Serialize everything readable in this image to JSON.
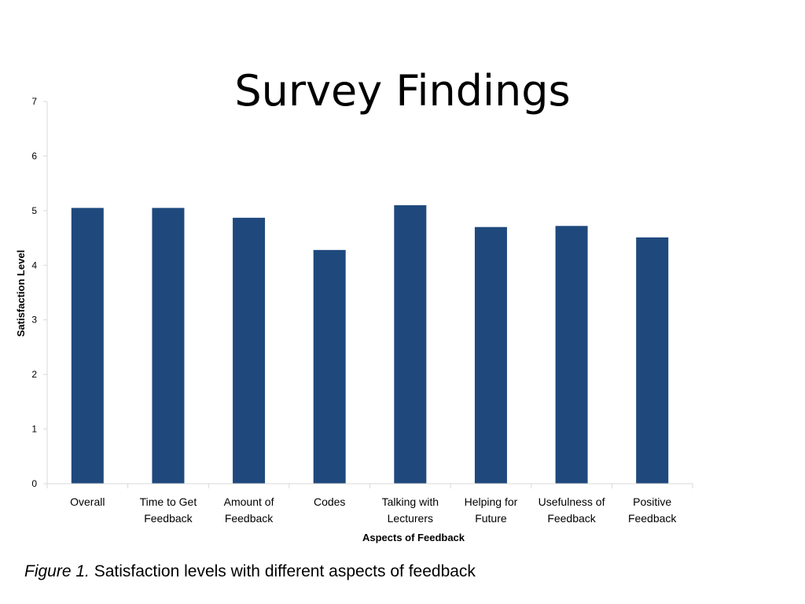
{
  "slide": {
    "title": "Survey Findings"
  },
  "caption": {
    "label": "Figure 1.",
    "text": "Satisfaction levels with different aspects of feedback"
  },
  "chart_data": {
    "type": "bar",
    "title": "Survey Findings",
    "xlabel": "Aspects of Feedback",
    "ylabel": "Satisfaction Level",
    "ylim": [
      0,
      7
    ],
    "yticks": [
      0,
      1,
      2,
      3,
      4,
      5,
      6,
      7
    ],
    "grid": false,
    "legend": "none",
    "bar_color": "#1F497D",
    "axis_color": "#D9D9D9",
    "categories": [
      [
        "Overall"
      ],
      [
        "Time to Get",
        "Feedback"
      ],
      [
        "Amount of",
        "Feedback"
      ],
      [
        "Codes"
      ],
      [
        "Talking with",
        "Lecturers"
      ],
      [
        "Helping for",
        "Future"
      ],
      [
        "Usefulness of",
        "Feedback"
      ],
      [
        "Positive",
        "Feedback"
      ]
    ],
    "values": [
      5.05,
      5.05,
      4.87,
      4.28,
      5.1,
      4.7,
      4.72,
      4.51
    ]
  }
}
